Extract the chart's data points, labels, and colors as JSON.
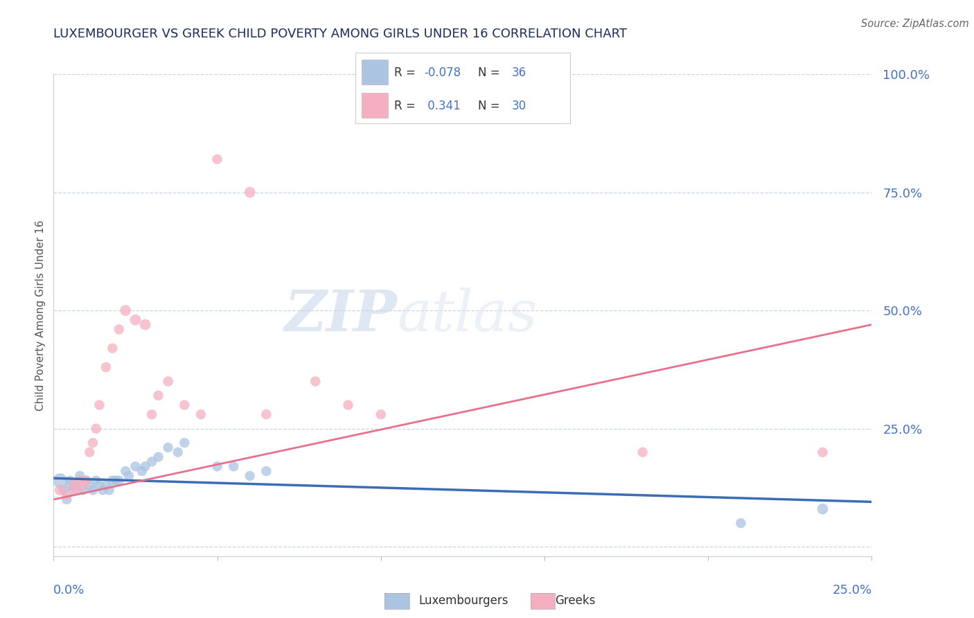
{
  "title": "LUXEMBOURGER VS GREEK CHILD POVERTY AMONG GIRLS UNDER 16 CORRELATION CHART",
  "source": "Source: ZipAtlas.com",
  "xlim": [
    0.0,
    0.25
  ],
  "ylim": [
    -0.02,
    1.0
  ],
  "ylabel_ticks": [
    0.0,
    0.25,
    0.5,
    0.75,
    1.0
  ],
  "ylabel_labels": [
    "",
    "25.0%",
    "50.0%",
    "75.0%",
    "100.0%"
  ],
  "legend_label1": "Luxembourgers",
  "legend_label2": "Greeks",
  "watermark_zip": "ZIP",
  "watermark_atlas": "atlas",
  "blue_color": "#aac4e2",
  "pink_color": "#f5afc0",
  "blue_line_color": "#3b6cb5",
  "pink_line_color": "#e8708a",
  "axis_label_color": "#4472c4",
  "title_color": "#1a2e5a",
  "grid_color": "#c5d5e8",
  "lux_x": [
    0.002,
    0.003,
    0.004,
    0.005,
    0.005,
    0.006,
    0.007,
    0.008,
    0.009,
    0.01,
    0.011,
    0.012,
    0.013,
    0.014,
    0.015,
    0.016,
    0.017,
    0.018,
    0.019,
    0.02,
    0.022,
    0.023,
    0.025,
    0.027,
    0.028,
    0.03,
    0.032,
    0.035,
    0.038,
    0.04,
    0.05,
    0.055,
    0.06,
    0.065,
    0.21,
    0.235
  ],
  "lux_y": [
    0.14,
    0.12,
    0.1,
    0.14,
    0.13,
    0.12,
    0.13,
    0.15,
    0.12,
    0.14,
    0.13,
    0.12,
    0.14,
    0.13,
    0.12,
    0.13,
    0.12,
    0.14,
    0.14,
    0.14,
    0.16,
    0.15,
    0.17,
    0.16,
    0.17,
    0.18,
    0.19,
    0.21,
    0.2,
    0.22,
    0.17,
    0.17,
    0.15,
    0.16,
    0.05,
    0.08
  ],
  "lux_sizes": [
    220,
    100,
    100,
    100,
    100,
    100,
    100,
    100,
    100,
    100,
    100,
    100,
    100,
    100,
    100,
    100,
    100,
    100,
    100,
    100,
    100,
    100,
    100,
    100,
    100,
    100,
    100,
    100,
    100,
    100,
    100,
    100,
    100,
    100,
    100,
    120
  ],
  "greek_x": [
    0.002,
    0.004,
    0.006,
    0.007,
    0.008,
    0.009,
    0.01,
    0.011,
    0.012,
    0.013,
    0.014,
    0.016,
    0.018,
    0.02,
    0.022,
    0.025,
    0.028,
    0.03,
    0.032,
    0.035,
    0.04,
    0.045,
    0.05,
    0.06,
    0.065,
    0.08,
    0.09,
    0.1,
    0.18,
    0.235
  ],
  "greek_y": [
    0.12,
    0.11,
    0.13,
    0.12,
    0.14,
    0.13,
    0.14,
    0.2,
    0.22,
    0.25,
    0.3,
    0.38,
    0.42,
    0.46,
    0.5,
    0.48,
    0.47,
    0.28,
    0.32,
    0.35,
    0.3,
    0.28,
    0.82,
    0.75,
    0.28,
    0.35,
    0.3,
    0.28,
    0.2,
    0.2
  ],
  "greek_sizes": [
    120,
    100,
    100,
    100,
    100,
    100,
    100,
    100,
    100,
    100,
    100,
    100,
    100,
    100,
    120,
    120,
    120,
    100,
    100,
    100,
    100,
    100,
    100,
    120,
    100,
    100,
    100,
    100,
    100,
    100
  ],
  "lux_trend_x": [
    0.0,
    0.25
  ],
  "lux_trend_y": [
    0.145,
    0.095
  ],
  "greek_trend_x": [
    0.0,
    0.25
  ],
  "greek_trend_y": [
    0.1,
    0.47
  ]
}
